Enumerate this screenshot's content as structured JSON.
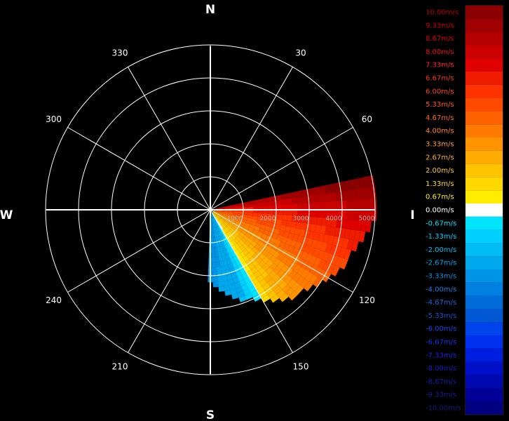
{
  "chart_data": {
    "type": "polar-ppi",
    "title": "",
    "product": "Radial velocity",
    "cardinals": {
      "north": "N",
      "east": "E",
      "south": "S",
      "west": "W"
    },
    "azimuth_labels": [
      {
        "az": 30,
        "text": "30"
      },
      {
        "az": 60,
        "text": "60"
      },
      {
        "az": 120,
        "text": "120"
      },
      {
        "az": 150,
        "text": "150"
      },
      {
        "az": 210,
        "text": "210"
      },
      {
        "az": 240,
        "text": "240"
      },
      {
        "az": 300,
        "text": "300"
      },
      {
        "az": 330,
        "text": "330"
      }
    ],
    "azimuth_gridlines_deg": [
      0,
      30,
      60,
      90,
      120,
      150,
      180,
      210,
      240,
      270,
      300,
      330
    ],
    "range_rings": [
      1000,
      2000,
      3000,
      4000,
      5000
    ],
    "range_labels": [
      "1000",
      "2000",
      "3000",
      "4000",
      "5000"
    ],
    "range_max": 5000,
    "data_sector": {
      "az_start": 78,
      "az_end": 182,
      "range_start": 100,
      "range_end": 5000
    },
    "velocity_pattern": [
      {
        "az": 80,
        "v": 8.0
      },
      {
        "az": 90,
        "v": 6.0
      },
      {
        "az": 100,
        "v": 4.67
      },
      {
        "az": 115,
        "v": 3.33
      },
      {
        "az": 130,
        "v": 2.0
      },
      {
        "az": 145,
        "v": 0.67
      },
      {
        "az": 160,
        "v": -2.67
      },
      {
        "az": 175,
        "v": -3.33
      }
    ],
    "legend": {
      "unit": "m/s",
      "entries": [
        {
          "label": "10.00m/s",
          "value": 10.0,
          "color": "#8b0000",
          "text_color": "#b80000"
        },
        {
          "label": "9.33m/s",
          "value": 9.33,
          "color": "#a00000",
          "text_color": "#cc0000"
        },
        {
          "label": "8.67m/s",
          "value": 8.67,
          "color": "#b50000",
          "text_color": "#dd0000"
        },
        {
          "label": "8.00m/s",
          "value": 8.0,
          "color": "#cc0000",
          "text_color": "#ee1111"
        },
        {
          "label": "7.33m/s",
          "value": 7.33,
          "color": "#e00000",
          "text_color": "#ff2222"
        },
        {
          "label": "6.67m/s",
          "value": 6.67,
          "color": "#f01c00",
          "text_color": "#ff3311"
        },
        {
          "label": "6.00m/s",
          "value": 6.0,
          "color": "#ff3300",
          "text_color": "#ff4411"
        },
        {
          "label": "5.33m/s",
          "value": 5.33,
          "color": "#ff4a00",
          "text_color": "#ff5511"
        },
        {
          "label": "4.67m/s",
          "value": 4.67,
          "color": "#ff6200",
          "text_color": "#ff6a11"
        },
        {
          "label": "4.00m/s",
          "value": 4.0,
          "color": "#ff7b00",
          "text_color": "#ff8020"
        },
        {
          "label": "3.33m/s",
          "value": 3.33,
          "color": "#ff9400",
          "text_color": "#ff9a20"
        },
        {
          "label": "2.67m/s",
          "value": 2.67,
          "color": "#ffab00",
          "text_color": "#ffb020"
        },
        {
          "label": "2.00m/s",
          "value": 2.0,
          "color": "#ffc300",
          "text_color": "#ffc820"
        },
        {
          "label": "1.33m/s",
          "value": 1.33,
          "color": "#ffd800",
          "text_color": "#ffdd20"
        },
        {
          "label": "0.67m/s",
          "value": 0.67,
          "color": "#ffec00",
          "text_color": "#fff020"
        },
        {
          "label": "0.00m/s",
          "value": 0.0,
          "color": "#ffffff",
          "text_color": "#ffffff"
        },
        {
          "label": "-0.67m/s",
          "value": -0.67,
          "color": "#00e5ff",
          "text_color": "#00e5ff"
        },
        {
          "label": "-1.33m/s",
          "value": -1.33,
          "color": "#00d0ff",
          "text_color": "#00d0ff"
        },
        {
          "label": "-2.00m/s",
          "value": -2.0,
          "color": "#00bcf5",
          "text_color": "#00bcf5"
        },
        {
          "label": "-2.67m/s",
          "value": -2.67,
          "color": "#00a8ee",
          "text_color": "#00a8ee"
        },
        {
          "label": "-3.33m/s",
          "value": -3.33,
          "color": "#0094e6",
          "text_color": "#0094e6"
        },
        {
          "label": "-4.00m/s",
          "value": -4.0,
          "color": "#0080e0",
          "text_color": "#1a7ee0"
        },
        {
          "label": "-4.67m/s",
          "value": -4.67,
          "color": "#006cda",
          "text_color": "#1a6ada"
        },
        {
          "label": "-5.33m/s",
          "value": -5.33,
          "color": "#0058d4",
          "text_color": "#1a56d4"
        },
        {
          "label": "-6.00m/s",
          "value": -6.0,
          "color": "#0044ee",
          "text_color": "#1a44ee"
        },
        {
          "label": "-6.67m/s",
          "value": -6.67,
          "color": "#0030f0",
          "text_color": "#1a30f0"
        },
        {
          "label": "-7.33m/s",
          "value": -7.33,
          "color": "#001ee0",
          "text_color": "#1a22e0"
        },
        {
          "label": "-8.00m/s",
          "value": -8.0,
          "color": "#0010c8",
          "text_color": "#1a1ac8"
        },
        {
          "label": "-8.67m/s",
          "value": -8.67,
          "color": "#0008b0",
          "text_color": "#1a1ab0"
        },
        {
          "label": "-9.33m/s",
          "value": -9.33,
          "color": "#000098",
          "text_color": "#1a1a98"
        },
        {
          "label": "-10.00m/s",
          "value": -10.0,
          "color": "#000080",
          "text_color": "#1a1a80"
        }
      ]
    }
  }
}
